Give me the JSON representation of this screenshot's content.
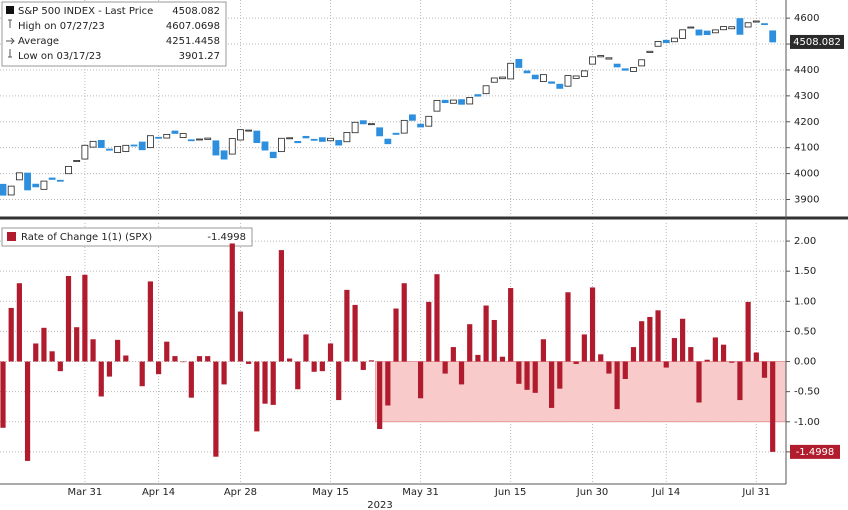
{
  "chart_data": [
    {
      "type": "candlestick",
      "legend": [
        {
          "label": "S&P 500 INDEX - Last Price",
          "value": 4508.082
        },
        {
          "label": "High on 07/27/23",
          "value": 4607.0698
        },
        {
          "label": "Average",
          "value": 4251.4458
        },
        {
          "label": "Low on 03/17/23",
          "value": 3901.27
        }
      ],
      "up_color": "#ffffff",
      "down_color": "#2d8fdd",
      "ylim": [
        3844,
        4670
      ],
      "yticks": [
        3900,
        4000,
        4100,
        4200,
        4300,
        4400,
        4500,
        4600
      ],
      "grid": true,
      "open": [
        3958.69,
        3917.47,
        3975.89,
        4002.04,
        3959.21,
        3939.21,
        3982.93,
        3974.13,
        3999.53,
        4046.74,
        4056.18,
        4102.2,
        4128.03,
        4094.5,
        4081.15,
        4085.2,
        4110.29,
        4121.72,
        4100.04,
        4140.11,
        4137.17,
        4164.26,
        4139.33,
        4130.48,
        4132.14,
        4132.07,
        4126.43,
        4087.78,
        4075.29,
        4129.63,
        4166.79,
        4164.1,
        4122.25,
        4082.61,
        4084.73,
        4136.98,
        4124.25,
        4143.74,
        4132.24,
        4138.54,
        4126.65,
        4127.95,
        4122.85,
        4157.68,
        4204.15,
        4190.78,
        4176.8,
        4132.96,
        4155.71,
        4156.16,
        4226.71,
        4190.74,
        4183.03,
        4241.01,
        4282.99,
        4271.34,
        4285.47,
        4268.69,
        4304.88,
        4308.32,
        4352.61,
        4366.29,
        4365.33,
        4440.95,
        4396.11,
        4380.01,
        4355.4,
        4354.17,
        4344.84,
        4337.36,
        4367.48,
        4374.94,
        4422.44,
        4450.48,
        4442.04,
        4422.62,
        4404.54,
        4394.23,
        4415.55,
        4467.69,
        4491.5,
        4514.61,
        4508.86,
        4521.78,
        4563.87,
        4554.38,
        4550.16,
        4543.39,
        4555.19,
        4558.96,
        4598.26,
        4565.75,
        4584.82,
        4578.83,
        4550.93
      ],
      "close": [
        3916.64,
        3951.57,
        4002.87,
        3936.97,
        3948.72,
        3970.99,
        3977.53,
        3971.27,
        4027.81,
        4050.83,
        4109.31,
        4124.51,
        4100.6,
        4090.38,
        4105.02,
        4109.11,
        4108.94,
        4091.95,
        4146.22,
        4137.64,
        4151.32,
        4154.87,
        4154.52,
        4129.79,
        4133.52,
        4137.04,
        4071.63,
        4055.99,
        4135.35,
        4169.48,
        4167.87,
        4119.58,
        4090.75,
        4061.22,
        4136.25,
        4138.12,
        4119.17,
        4137.64,
        4130.62,
        4124.08,
        4136.28,
        4109.9,
        4158.77,
        4198.05,
        4191.98,
        4192.63,
        4145.58,
        4115.24,
        4151.28,
        4205.45,
        4205.52,
        4179.83,
        4221.02,
        4282.37,
        4273.79,
        4283.85,
        4267.52,
        4293.93,
        4298.86,
        4338.93,
        4369.01,
        4372.59,
        4425.84,
        4409.59,
        4388.71,
        4365.69,
        4381.89,
        4348.33,
        4328.82,
        4378.41,
        4376.86,
        4396.44,
        4450.38,
        4455.59,
        4446.82,
        4411.59,
        4398.95,
        4409.53,
        4439.26,
        4472.16,
        4510.04,
        4505.42,
        4522.79,
        4554.98,
        4565.72,
        4534.87,
        4536.34,
        4554.64,
        4567.46,
        4566.75,
        4537.41,
        4582.23,
        4588.96,
        4576.73,
        4508.082
      ]
    },
    {
      "type": "bar",
      "legend": "Rate of Change 1(1) (SPX)",
      "color": "#b01c2e",
      "x_annotation": "2023",
      "categories": [
        null,
        null,
        null,
        null,
        null,
        null,
        null,
        null,
        null,
        null,
        "Mar 31",
        null,
        null,
        null,
        null,
        null,
        null,
        null,
        null,
        "Apr 14",
        null,
        null,
        null,
        null,
        null,
        null,
        null,
        null,
        null,
        "Apr 28",
        null,
        null,
        null,
        null,
        null,
        null,
        null,
        null,
        null,
        null,
        "May 15",
        null,
        null,
        null,
        null,
        null,
        null,
        null,
        null,
        null,
        null,
        "May 31",
        null,
        null,
        null,
        null,
        null,
        null,
        null,
        null,
        null,
        null,
        "Jun 15",
        null,
        null,
        null,
        null,
        null,
        null,
        null,
        null,
        null,
        "Jun 30",
        null,
        null,
        null,
        null,
        null,
        null,
        null,
        null,
        "Jul 14",
        null,
        null,
        null,
        null,
        null,
        null,
        null,
        null,
        null,
        null,
        "Jul 31",
        null,
        null
      ],
      "values": [
        -1.1,
        0.89,
        1.3,
        -1.65,
        0.3,
        0.56,
        0.17,
        -0.16,
        1.42,
        0.57,
        1.44,
        0.37,
        -0.58,
        -0.25,
        0.36,
        0.1,
        0,
        -0.41,
        1.33,
        -0.21,
        0.33,
        0.09,
        -0.01,
        -0.6,
        0.09,
        0.09,
        -1.58,
        -0.38,
        1.96,
        0.83,
        -0.04,
        -1.16,
        -0.7,
        -0.72,
        1.85,
        0.05,
        -0.46,
        0.45,
        -0.17,
        -0.16,
        0.3,
        -0.64,
        1.19,
        0.94,
        -0.14,
        0.02,
        -1.12,
        -0.73,
        0.88,
        1.3,
        0,
        -0.61,
        0.99,
        1.45,
        -0.2,
        0.24,
        -0.38,
        0.62,
        0.11,
        0.93,
        0.69,
        0.08,
        1.22,
        -0.37,
        -0.47,
        -0.52,
        0.37,
        -0.77,
        -0.45,
        1.15,
        -0.04,
        0.45,
        1.23,
        0.12,
        -0.2,
        -0.79,
        -0.29,
        0.24,
        0.67,
        0.74,
        0.85,
        -0.1,
        0.39,
        0.71,
        0.24,
        -0.68,
        0.03,
        0.4,
        0.28,
        -0.02,
        -0.64,
        0.99,
        0.15,
        -0.27,
        -1.4998
      ],
      "shaded_band": {
        "start": 46,
        "ymin": -1,
        "ymax": 0,
        "color": "#f8caca"
      },
      "ylim": [
        -2.0,
        2.3
      ],
      "yticks": [
        {
          "value": 2,
          "label": "2.00"
        },
        {
          "value": 1.5,
          "label": "1.50"
        },
        {
          "value": 1,
          "label": "1.00"
        },
        {
          "value": 0.5,
          "label": "0.50"
        },
        {
          "value": 0,
          "label": "0.00"
        },
        {
          "value": -0.5,
          "label": "-0.50"
        },
        {
          "value": -1,
          "label": "-1.00"
        },
        {
          "value": -1.5,
          "label": "-1.50"
        }
      ],
      "grid": true
    }
  ]
}
